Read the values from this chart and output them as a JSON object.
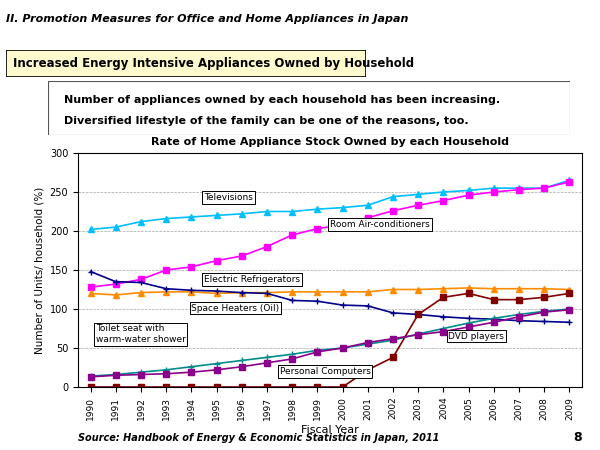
{
  "years": [
    1990,
    1991,
    1992,
    1993,
    1994,
    1995,
    1996,
    1997,
    1998,
    1999,
    2000,
    2001,
    2002,
    2003,
    2004,
    2005,
    2006,
    2007,
    2008,
    2009
  ],
  "televisions": [
    202,
    205,
    212,
    216,
    218,
    220,
    222,
    225,
    225,
    228,
    230,
    233,
    244,
    247,
    250,
    252,
    255,
    255,
    255,
    265
  ],
  "room_airconditioners": [
    128,
    132,
    138,
    150,
    154,
    162,
    168,
    180,
    195,
    203,
    208,
    217,
    226,
    233,
    239,
    246,
    250,
    253,
    255,
    263
  ],
  "electric_refrigerators": [
    120,
    118,
    121,
    122,
    122,
    120,
    121,
    121,
    122,
    122,
    122,
    122,
    125,
    125,
    126,
    127,
    126,
    126,
    126,
    125
  ],
  "space_heaters_oil": [
    148,
    135,
    134,
    126,
    124,
    123,
    121,
    120,
    111,
    110,
    105,
    104,
    95,
    93,
    90,
    88,
    87,
    85,
    84,
    83
  ],
  "toilet_seat": [
    14,
    16,
    19,
    22,
    26,
    30,
    34,
    38,
    42,
    47,
    50,
    55,
    60,
    68,
    75,
    82,
    88,
    93,
    97,
    100
  ],
  "dvd_players": [
    0,
    0,
    0,
    0,
    0,
    0,
    0,
    0,
    0,
    0,
    0,
    22,
    38,
    93,
    115,
    120,
    112,
    112,
    115,
    120
  ],
  "personal_computers": [
    13,
    15,
    16,
    17,
    19,
    22,
    26,
    31,
    36,
    45,
    50,
    57,
    62,
    67,
    71,
    77,
    83,
    90,
    96,
    99
  ],
  "title": "Rate of Home Appliance Stock Owned by each Household",
  "xlabel": "Fiscal Year",
  "ylabel": "Number of Units/ household (%)",
  "ylim": [
    0,
    300
  ],
  "yticks": [
    0,
    50,
    100,
    150,
    200,
    250,
    300
  ],
  "header_title": "II. Promotion Measures for Office and Home Appliances in Japan",
  "box_title": "Increased Energy Intensive Appliances Owned by Household",
  "description_line1": "Number of appliances owned by each household has been increasing.",
  "description_line2": "Diversified lifestyle of the family can be one of the reasons, too.",
  "source_text": "Source: Handbook of Energy & Economic Statistics in Japan, 2011",
  "page_number": "8",
  "colors": {
    "televisions": "#00BFFF",
    "room_airconditioners": "#FF00FF",
    "electric_refrigerators": "#FF8C00",
    "space_heaters_oil": "#00008B",
    "toilet_seat": "#008B8B",
    "dvd_players": "#800000",
    "personal_computers": "#8B008B"
  }
}
